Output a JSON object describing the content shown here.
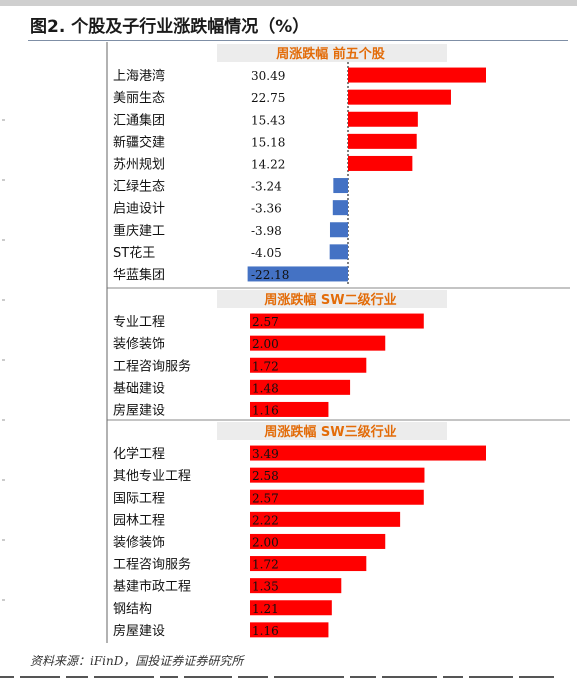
{
  "title": "图2. 个股及子行业涨跌幅情况（%）",
  "source": "资料来源：iFinD，国投证券证券研究所",
  "colors": {
    "positive": "#ff0000",
    "negative": "#4472c4",
    "header_text": "#e36c09",
    "header_bg": "#ececec"
  },
  "chart_data": [
    {
      "type": "bar",
      "title": "周涨跌幅 前五个股",
      "categories": [
        "上海港湾",
        "美丽生态",
        "汇通集团",
        "新疆交建",
        "苏州规划",
        "汇绿生态",
        "启迪设计",
        "重庆建工",
        "ST花王",
        "华蓝集团"
      ],
      "values": [
        30.49,
        22.75,
        15.43,
        15.18,
        14.22,
        -3.24,
        -3.36,
        -3.98,
        -4.05,
        -22.18
      ],
      "labels": [
        "30.49",
        "22.75",
        "15.43",
        "15.18",
        "14.22",
        "-3.24",
        "-3.36",
        "-3.98",
        "-4.05",
        "-22.18"
      ],
      "xlim": [
        -22.18,
        30.49
      ]
    },
    {
      "type": "bar",
      "title": "周涨跌幅 SW二级行业",
      "categories": [
        "专业工程",
        "装修装饰",
        "工程咨询服务",
        "基础建设",
        "房屋建设"
      ],
      "values": [
        2.57,
        2.0,
        1.72,
        1.48,
        1.16
      ],
      "labels": [
        "2.57",
        "2.00",
        "1.72",
        "1.48",
        "1.16"
      ],
      "xlim": [
        0,
        3.49
      ]
    },
    {
      "type": "bar",
      "title": "周涨跌幅 SW三级行业",
      "categories": [
        "化学工程",
        "其他专业工程",
        "国际工程",
        "园林工程",
        "装修装饰",
        "工程咨询服务",
        "基建市政工程",
        "钢结构",
        "房屋建设"
      ],
      "values": [
        3.49,
        2.58,
        2.57,
        2.22,
        2.0,
        1.72,
        1.35,
        1.21,
        1.16
      ],
      "labels": [
        "3.49",
        "2.58",
        "2.57",
        "2.22",
        "2.00",
        "1.72",
        "1.35",
        "1.21",
        "1.16"
      ],
      "xlim": [
        0,
        3.49
      ]
    }
  ]
}
